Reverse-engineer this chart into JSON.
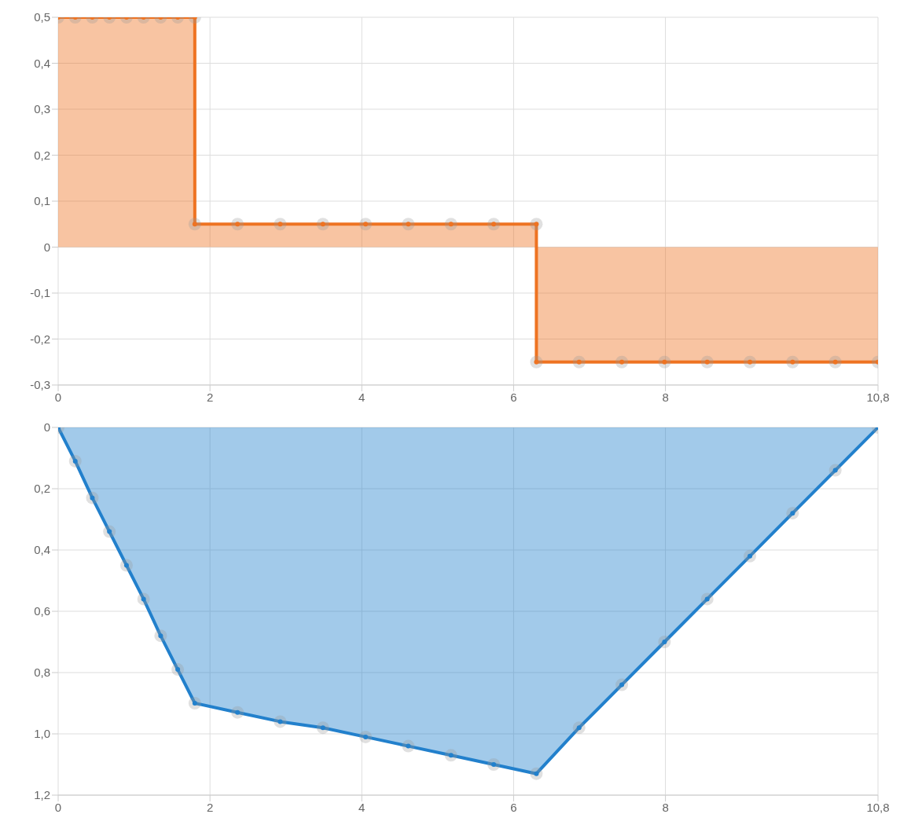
{
  "chart_data": [
    {
      "type": "area",
      "x": [
        0,
        0.225,
        0.45,
        0.675,
        0.9,
        1.125,
        1.35,
        1.575,
        1.8,
        1.8,
        2.3625,
        2.925,
        3.4875,
        4.05,
        4.6125,
        5.175,
        5.7375,
        6.3,
        6.3,
        6.8625,
        7.425,
        7.9875,
        8.55,
        9.1125,
        9.675,
        10.2375,
        10.8
      ],
      "series": [
        {
          "color": "#ee7322",
          "values": [
            0.5,
            0.5,
            0.5,
            0.5,
            0.5,
            0.5,
            0.5,
            0.5,
            0.5,
            0.05,
            0.05,
            0.05,
            0.05,
            0.05,
            0.05,
            0.05,
            0.05,
            0.05,
            -0.25,
            -0.25,
            -0.25,
            -0.25,
            -0.25,
            -0.25,
            -0.25,
            -0.25,
            -0.25
          ]
        }
      ],
      "xlim": [
        0,
        10.8
      ],
      "xticks": [
        0,
        2,
        4,
        6,
        8,
        {
          "value": 10.8,
          "label": "10,8"
        }
      ],
      "ylim": [
        -0.3,
        0.5
      ],
      "yticks": [
        {
          "value": -0.3,
          "label": "-0,3"
        },
        {
          "value": -0.2,
          "label": "-0,2"
        },
        {
          "value": -0.1,
          "label": "-0,1"
        },
        0,
        {
          "value": 0.1,
          "label": "0,1"
        },
        {
          "value": 0.2,
          "label": "0,2"
        },
        {
          "value": 0.3,
          "label": "0,3"
        },
        {
          "value": 0.4,
          "label": "0,4"
        },
        {
          "value": 0.5,
          "label": "0,5"
        }
      ],
      "grid": true,
      "marker": "circle"
    },
    {
      "type": "area",
      "x": [
        0,
        0.225,
        0.45,
        0.675,
        0.9,
        1.125,
        1.35,
        1.575,
        1.8,
        2.3625,
        2.925,
        3.4875,
        4.05,
        4.6125,
        5.175,
        5.7375,
        6.3,
        6.8625,
        7.425,
        7.9875,
        8.55,
        9.1125,
        9.675,
        10.2375,
        10.8
      ],
      "series": [
        {
          "color": "#2280cc",
          "values": [
            0,
            0.11,
            0.23,
            0.34,
            0.45,
            0.56,
            0.68,
            0.79,
            0.9,
            0.93,
            0.96,
            0.98,
            1.01,
            1.04,
            1.07,
            1.1,
            1.13,
            0.98,
            0.84,
            0.7,
            0.56,
            0.42,
            0.28,
            0.14,
            0
          ]
        }
      ],
      "xlim": [
        0,
        10.8
      ],
      "xticks": [
        0,
        2,
        4,
        6,
        8,
        {
          "value": 10.8,
          "label": "10,8"
        }
      ],
      "ylim": [
        1.2,
        0
      ],
      "yticks": [
        0,
        {
          "value": 0.2,
          "label": "0,2"
        },
        {
          "value": 0.4,
          "label": "0,4"
        },
        {
          "value": 0.6,
          "label": "0,6"
        },
        {
          "value": 0.8,
          "label": "0,8"
        },
        {
          "value": 1.0,
          "label": "1,0"
        },
        {
          "value": 1.2,
          "label": "1,2"
        }
      ],
      "grid": true,
      "marker": "circle"
    }
  ]
}
